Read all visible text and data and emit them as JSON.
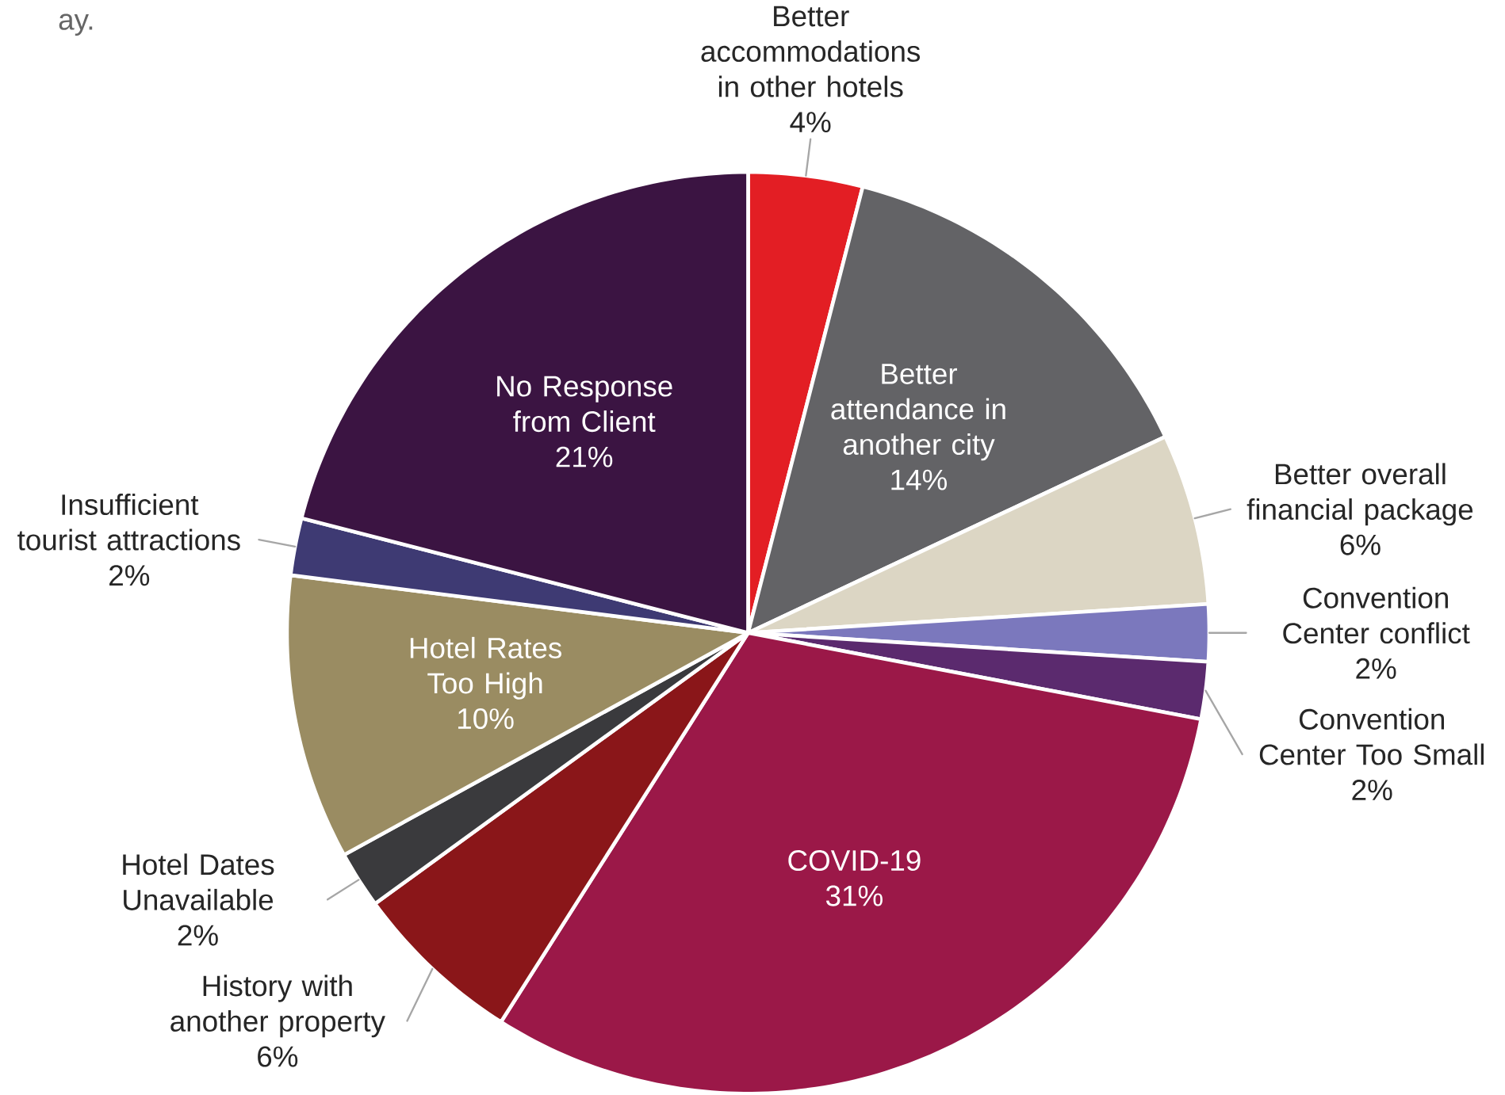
{
  "chart_data": {
    "type": "pie",
    "categories": [
      "Better accommodations in other hotels",
      "Better attendance in another city",
      "Better overall financial package",
      "Convention Center conflict",
      "Convention Center Too Small",
      "COVID-19",
      "History with another property",
      "Hotel Dates Unavailable",
      "Hotel Rates Too High",
      "Insufficient tourist attractions",
      "No Response from Client"
    ],
    "values": [
      4,
      14,
      6,
      2,
      2,
      31,
      6,
      2,
      10,
      2,
      21
    ],
    "value_labels": [
      "4%",
      "14%",
      "6%",
      "2%",
      "2%",
      "31%",
      "6%",
      "2%",
      "10%",
      "2%",
      "21%"
    ],
    "colors": [
      "#e31e24",
      "#636366",
      "#dcd6c4",
      "#7b78bd",
      "#5b2a6e",
      "#9b1848",
      "#8a1619",
      "#3a3a3d",
      "#9a8c62",
      "#3e3a73",
      "#3b1442"
    ],
    "annotations": [
      "ay."
    ]
  }
}
